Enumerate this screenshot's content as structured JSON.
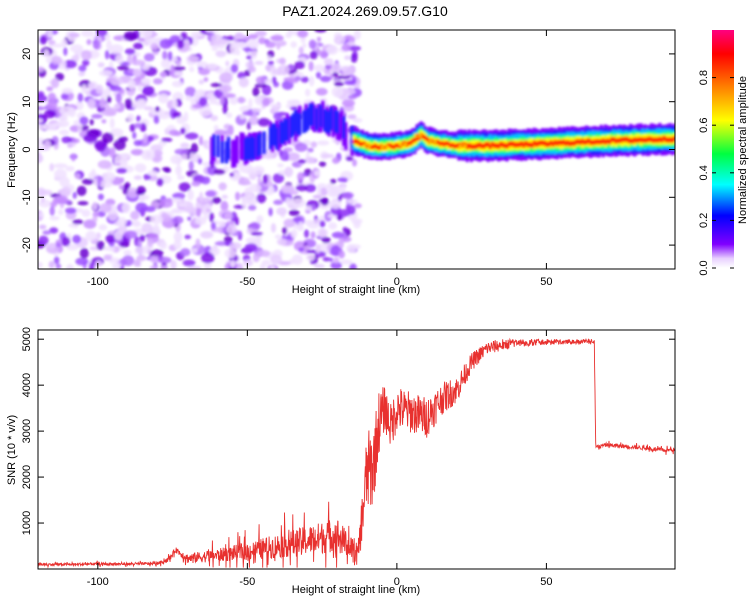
{
  "title": "PAZ1.2024.269.09.57.G10",
  "chart_data": [
    {
      "type": "heatmap",
      "xlabel": "Height of straight line (km)",
      "ylabel": "Frequency (Hz)",
      "xlim": [
        -120,
        93
      ],
      "ylim": [
        -25,
        25
      ],
      "x_ticks": [
        -100,
        -50,
        0,
        50
      ],
      "y_ticks": [
        -20,
        -10,
        0,
        10,
        20
      ],
      "colorbar": {
        "label": "Normalized spectral amplitude",
        "range": [
          0,
          1
        ],
        "ticks": [
          0.0,
          0.2,
          0.4,
          0.6,
          0.8
        ],
        "tick_labels": [
          "0.0",
          "0.2",
          "0.4",
          "0.6",
          "0.8"
        ]
      },
      "signal_trace": {
        "x": [
          -62,
          -55,
          -50,
          -45,
          -40,
          -35,
          -30,
          -25,
          -20,
          -15,
          -10,
          -5,
          0,
          5,
          8,
          10,
          15,
          20,
          30,
          40,
          50,
          60,
          70,
          80,
          93
        ],
        "frequency": [
          0.5,
          -0.5,
          0.5,
          1.5,
          3.0,
          5.0,
          6.5,
          7.0,
          5.5,
          2.0,
          0.8,
          0.5,
          0.8,
          1.5,
          3.0,
          2.0,
          1.2,
          0.8,
          0.8,
          1.0,
          1.2,
          1.5,
          1.8,
          2.0,
          2.2
        ]
      },
      "noise_region_x": [
        -120,
        -15
      ],
      "colors": [
        "#ffffff",
        "#8000ff",
        "#0000ff",
        "#00ffff",
        "#00ff00",
        "#ffff00",
        "#ff8000",
        "#ff0000",
        "#ff0080"
      ]
    },
    {
      "type": "line",
      "xlabel": "Height of straight line (km)",
      "ylabel": "SNR (10 * v/v)",
      "xlim": [
        -120,
        93
      ],
      "ylim": [
        0,
        5200
      ],
      "x_ticks": [
        -100,
        -50,
        0,
        50
      ],
      "y_ticks": [
        1000,
        2000,
        3000,
        4000,
        5000
      ],
      "line_color": "#e8312f",
      "series_envelope": {
        "x": [
          -120,
          -110,
          -100,
          -90,
          -80,
          -76,
          -74,
          -70,
          -60,
          -50,
          -40,
          -30,
          -20,
          -13,
          -10,
          -8,
          -6,
          -4,
          -2,
          0,
          5,
          10,
          15,
          20,
          25,
          30,
          40,
          50,
          60,
          66,
          66.5,
          70,
          80,
          90,
          93
        ],
        "mean": [
          100,
          100,
          110,
          110,
          120,
          220,
          420,
          230,
          300,
          380,
          500,
          620,
          750,
          300,
          2100,
          2200,
          3200,
          3500,
          3100,
          3500,
          3400,
          3300,
          3700,
          3900,
          4500,
          4800,
          4950,
          4980,
          4980,
          4980,
          2650,
          2700,
          2650,
          2580,
          2600
        ],
        "spread": [
          40,
          40,
          40,
          40,
          40,
          80,
          80,
          150,
          200,
          280,
          380,
          450,
          550,
          250,
          900,
          900,
          700,
          500,
          500,
          500,
          450,
          450,
          350,
          300,
          200,
          150,
          120,
          100,
          100,
          100,
          60,
          60,
          60,
          60,
          60
        ]
      }
    }
  ]
}
